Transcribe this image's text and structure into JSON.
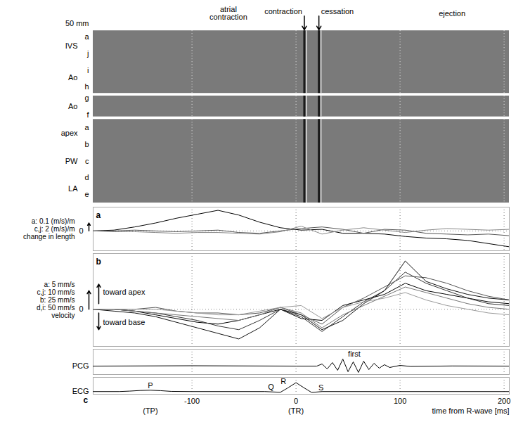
{
  "chart_data": [
    {
      "type": "mmode",
      "xlim": [
        -195,
        205
      ],
      "xticks": [
        -100,
        0,
        100,
        200
      ],
      "grid": true,
      "tick_labels": false,
      "scale_bar": "50 mm",
      "panels": [
        {
          "markers": [
            "a",
            "j",
            "i",
            "h"
          ],
          "structures": [
            "IVS",
            "Ao"
          ]
        },
        {
          "markers": [
            "g",
            "f"
          ],
          "structures": [
            "Ao"
          ]
        },
        {
          "markers": [
            "a",
            "b",
            "c",
            "d",
            "e"
          ],
          "structures": [
            "apex",
            "PW",
            "LA"
          ]
        }
      ],
      "phases": [
        {
          "label": "atrial contraction",
          "x": -65
        },
        {
          "label": "ejection",
          "x": 150
        }
      ],
      "events": [
        {
          "label": "contraction",
          "x": 8
        },
        {
          "label": "cessation",
          "x": 22
        }
      ]
    },
    {
      "type": "line",
      "panel": "a",
      "scales": [
        "a: 0.1 (m/s)/m",
        "c,j: 2 (m/s)/m"
      ],
      "ylabel": "change in length",
      "x": [
        -195,
        -175,
        -155,
        -135,
        -115,
        -95,
        -75,
        -55,
        -35,
        -15,
        5,
        25,
        45,
        65,
        85,
        105,
        125,
        145,
        165,
        185,
        205
      ],
      "series": [
        {
          "color": "#000000",
          "values": [
            0,
            0.1,
            0.5,
            1.0,
            1.6,
            2.1,
            2.6,
            2.0,
            1.1,
            0.4,
            0.1,
            0.2,
            -0.3,
            -0.3,
            -0.4,
            -0.7,
            -0.9,
            -1.0,
            -1.2,
            -1.6,
            -2.0
          ]
        },
        {
          "color": "#555555",
          "values": [
            0,
            0,
            0.1,
            0,
            -0.1,
            0,
            0.1,
            -0.2,
            -0.3,
            0,
            0.3,
            0.5,
            0.2,
            -0.3,
            0.2,
            0.1,
            -0.3,
            -0.4,
            -0.5,
            -0.4,
            -0.6
          ]
        },
        {
          "color": "#888888",
          "values": [
            0,
            -0.1,
            -0.1,
            -0.2,
            -0.3,
            -0.2,
            -0.2,
            -0.3,
            -0.4,
            -0.1,
            0.6,
            -0.4,
            0.1,
            0.4,
            0.1,
            -0.2,
            0.1,
            0.3,
            0.2,
            0.1,
            0.2
          ]
        }
      ],
      "xlim": [
        -195,
        205
      ],
      "xticks": [
        -100,
        0,
        100,
        200
      ],
      "ylim": [
        -2.5,
        3
      ],
      "yticks": [
        0
      ],
      "grid": true,
      "tick_labels": "y"
    },
    {
      "type": "line",
      "panel": "b",
      "scales": [
        "a: 5 mm/s",
        "c,j: 10 mm/s",
        "b: 25 mm/s",
        "d,i: 50 mm/s"
      ],
      "ylabel": "velocity",
      "directions": {
        "up": "toward apex",
        "down": "toward base"
      },
      "x": [
        -195,
        -175,
        -155,
        -135,
        -115,
        -95,
        -75,
        -55,
        -35,
        -15,
        5,
        25,
        45,
        65,
        85,
        105,
        125,
        145,
        165,
        185,
        205
      ],
      "series": [
        {
          "color": "#000000",
          "values": [
            0,
            0,
            -0.1,
            -0.3,
            -0.5,
            -0.7,
            -0.8,
            -0.6,
            -0.3,
            0,
            -0.5,
            -0.6,
            0.2,
            0.5,
            0.8,
            1.4,
            1.0,
            0.8,
            0.6,
            0.4,
            0.3
          ]
        },
        {
          "color": "#333333",
          "values": [
            0,
            0,
            -0.1,
            -0.2,
            -0.4,
            -0.6,
            -0.9,
            -1.1,
            -0.6,
            0,
            -0.4,
            -1.2,
            -0.4,
            0.4,
            1.0,
            2.0,
            1.4,
            1.0,
            0.6,
            0.3,
            0.2
          ]
        },
        {
          "color": "#555555",
          "values": [
            0,
            0,
            0,
            0.1,
            -0.1,
            -0.2,
            -0.2,
            -0.3,
            -0.2,
            0.1,
            -0.3,
            -0.8,
            0.1,
            0.6,
            1.2,
            1.8,
            1.7,
            1.4,
            1.0,
            0.7,
            0.5
          ]
        },
        {
          "color": "#111111",
          "values": [
            0,
            -0.1,
            -0.2,
            -0.4,
            -0.7,
            -1.0,
            -1.3,
            -1.6,
            -1.0,
            0,
            -0.3,
            -1.1,
            -0.6,
            0.3,
            1.0,
            2.6,
            1.5,
            1.1,
            0.8,
            0.6,
            0.5
          ]
        },
        {
          "color": "#777777",
          "values": [
            0,
            0,
            -0.1,
            -0.2,
            -0.3,
            -0.4,
            -0.5,
            -0.6,
            -0.3,
            0.1,
            -0.2,
            -1.0,
            -0.3,
            0.2,
            0.7,
            1.2,
            0.9,
            0.6,
            0.3,
            0.1,
            0
          ]
        },
        {
          "color": "#999999",
          "values": [
            0,
            0,
            0,
            0,
            -0.1,
            -0.2,
            -0.3,
            -0.3,
            -0.1,
            0.1,
            0.2,
            -0.5,
            0.1,
            0.4,
            0.6,
            0.9,
            0.5,
            0.2,
            0,
            -0.2,
            -0.3
          ]
        }
      ],
      "xlim": [
        -195,
        205
      ],
      "xticks": [
        -100,
        0,
        100,
        200
      ],
      "ylim": [
        -2,
        3
      ],
      "yticks": [
        0
      ],
      "grid": true,
      "tick_labels": "y"
    },
    {
      "type": "line",
      "ylabel": "PCG",
      "x": [
        -195,
        -100,
        0,
        20,
        25,
        30,
        35,
        40,
        45,
        50,
        55,
        60,
        65,
        70,
        75,
        80,
        85,
        90,
        100,
        110,
        150,
        205
      ],
      "series": [
        {
          "color": "#000000",
          "values": [
            0,
            0.05,
            0,
            0,
            0.3,
            -0.4,
            0.5,
            -0.6,
            1.0,
            -0.8,
            0.6,
            -0.9,
            0.7,
            -0.5,
            0.4,
            -0.3,
            0.2,
            -0.2,
            0.1,
            -0.05,
            0.02,
            0
          ]
        }
      ],
      "annotations": [
        {
          "label": "first",
          "x": 50,
          "y": 1.75
        }
      ],
      "xlim": [
        -195,
        205
      ],
      "xticks": [
        -100,
        0,
        100,
        200
      ],
      "ylim": [
        -1.2,
        2.4
      ],
      "yticks": [],
      "grid": true,
      "tick_labels": false
    },
    {
      "type": "line",
      "panel": "c",
      "ylabel": "ECG",
      "x": [
        -195,
        -170,
        -160,
        -150,
        -140,
        -130,
        -120,
        -100,
        -30,
        -15,
        -8,
        0,
        8,
        15,
        25,
        205
      ],
      "series": [
        {
          "color": "#000000",
          "values": [
            0,
            0,
            0.05,
            0.12,
            0.15,
            0.1,
            0.02,
            0,
            0,
            -0.08,
            0.4,
            1,
            0.4,
            -0.1,
            0,
            0
          ]
        }
      ],
      "annotations": [
        {
          "label": "P",
          "x": -140,
          "y": 0.65
        },
        {
          "label": "Q",
          "x": -24,
          "y": 0.5
        },
        {
          "label": "R",
          "x": -12,
          "y": 1.1
        },
        {
          "label": "S",
          "x": 24,
          "y": 0.45
        }
      ],
      "time_marks": [
        {
          "label": "(TP)",
          "x": -140
        },
        {
          "label": "(TR)",
          "x": 0
        }
      ],
      "xlabel": "time from R-wave [ms]",
      "xlim": [
        -195,
        205
      ],
      "xticks": [
        -100,
        0,
        100,
        200
      ],
      "ylim": [
        -0.3,
        1.6
      ],
      "yticks": [],
      "grid": true,
      "tick_labels": "x"
    }
  ]
}
